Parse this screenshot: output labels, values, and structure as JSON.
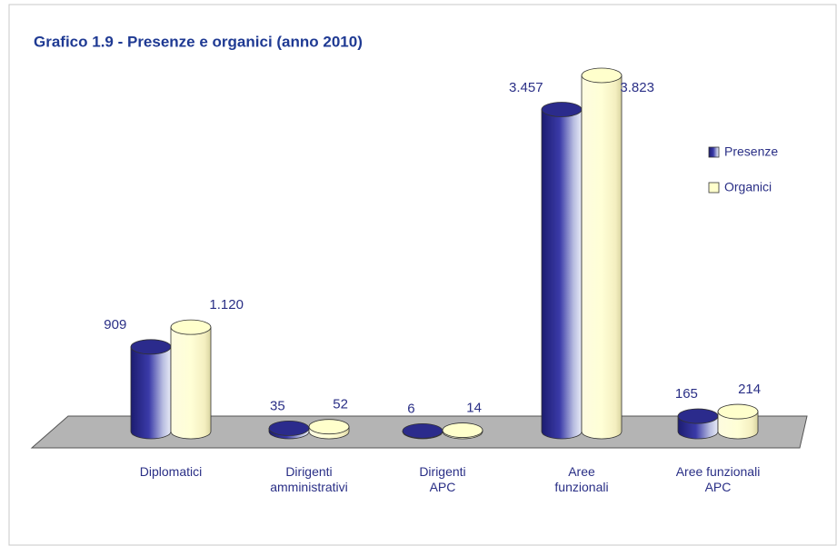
{
  "chart_data": {
    "type": "bar3d",
    "title": "Grafico 1.9 - Presenze e organici (anno 2010)",
    "categories": [
      "Diplomatici",
      "Dirigenti\namministrativi",
      "Dirigenti\nAPC",
      "Aree\nfunzionali",
      "Aree funzionali\nAPC"
    ],
    "series": [
      {
        "name": "Presenze",
        "color": "#2b2b8c",
        "values": [
          909,
          35,
          6,
          3457,
          165
        ],
        "value_labels": [
          "909",
          "35",
          "6",
          "3.457",
          "165"
        ]
      },
      {
        "name": "Organici",
        "color": "#ffffcc",
        "values": [
          1120,
          52,
          14,
          3823,
          214
        ],
        "value_labels": [
          "1.120",
          "52",
          "14",
          "3.823",
          "214"
        ]
      }
    ],
    "legend": "right"
  }
}
